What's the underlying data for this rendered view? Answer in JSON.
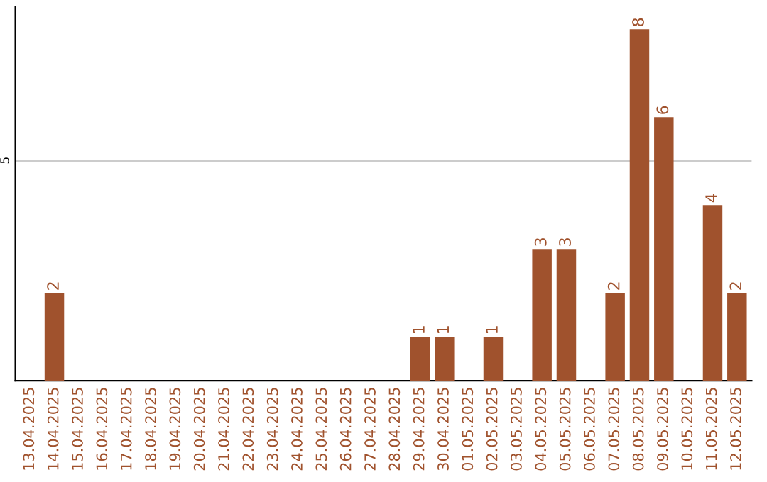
{
  "chart_data": {
    "type": "bar",
    "categories": [
      "13.04.2025",
      "14.04.2025",
      "15.04.2025",
      "16.04.2025",
      "17.04.2025",
      "18.04.2025",
      "19.04.2025",
      "20.04.2025",
      "21.04.2025",
      "22.04.2025",
      "23.04.2025",
      "24.04.2025",
      "25.04.2025",
      "26.04.2025",
      "27.04.2025",
      "28.04.2025",
      "29.04.2025",
      "30.04.2025",
      "01.05.2025",
      "02.05.2025",
      "03.05.2025",
      "04.05.2025",
      "05.05.2025",
      "06.05.2025",
      "07.05.2025",
      "08.05.2025",
      "09.05.2025",
      "10.05.2025",
      "11.05.2025",
      "12.05.2025"
    ],
    "values": [
      0,
      2,
      0,
      0,
      0,
      0,
      0,
      0,
      0,
      0,
      0,
      0,
      0,
      0,
      0,
      0,
      1,
      1,
      0,
      1,
      0,
      3,
      3,
      0,
      2,
      8,
      6,
      0,
      4,
      2
    ],
    "value_labels": [
      null,
      "2",
      null,
      null,
      null,
      null,
      null,
      null,
      null,
      null,
      null,
      null,
      null,
      null,
      null,
      null,
      "1",
      "1",
      null,
      "1",
      null,
      "3",
      "3",
      null,
      "2",
      "8",
      "6",
      null,
      "4",
      "2"
    ],
    "color": "#a0522d",
    "ylim": [
      0,
      8.5
    ],
    "yticks": [
      5
    ],
    "grid": "y"
  }
}
